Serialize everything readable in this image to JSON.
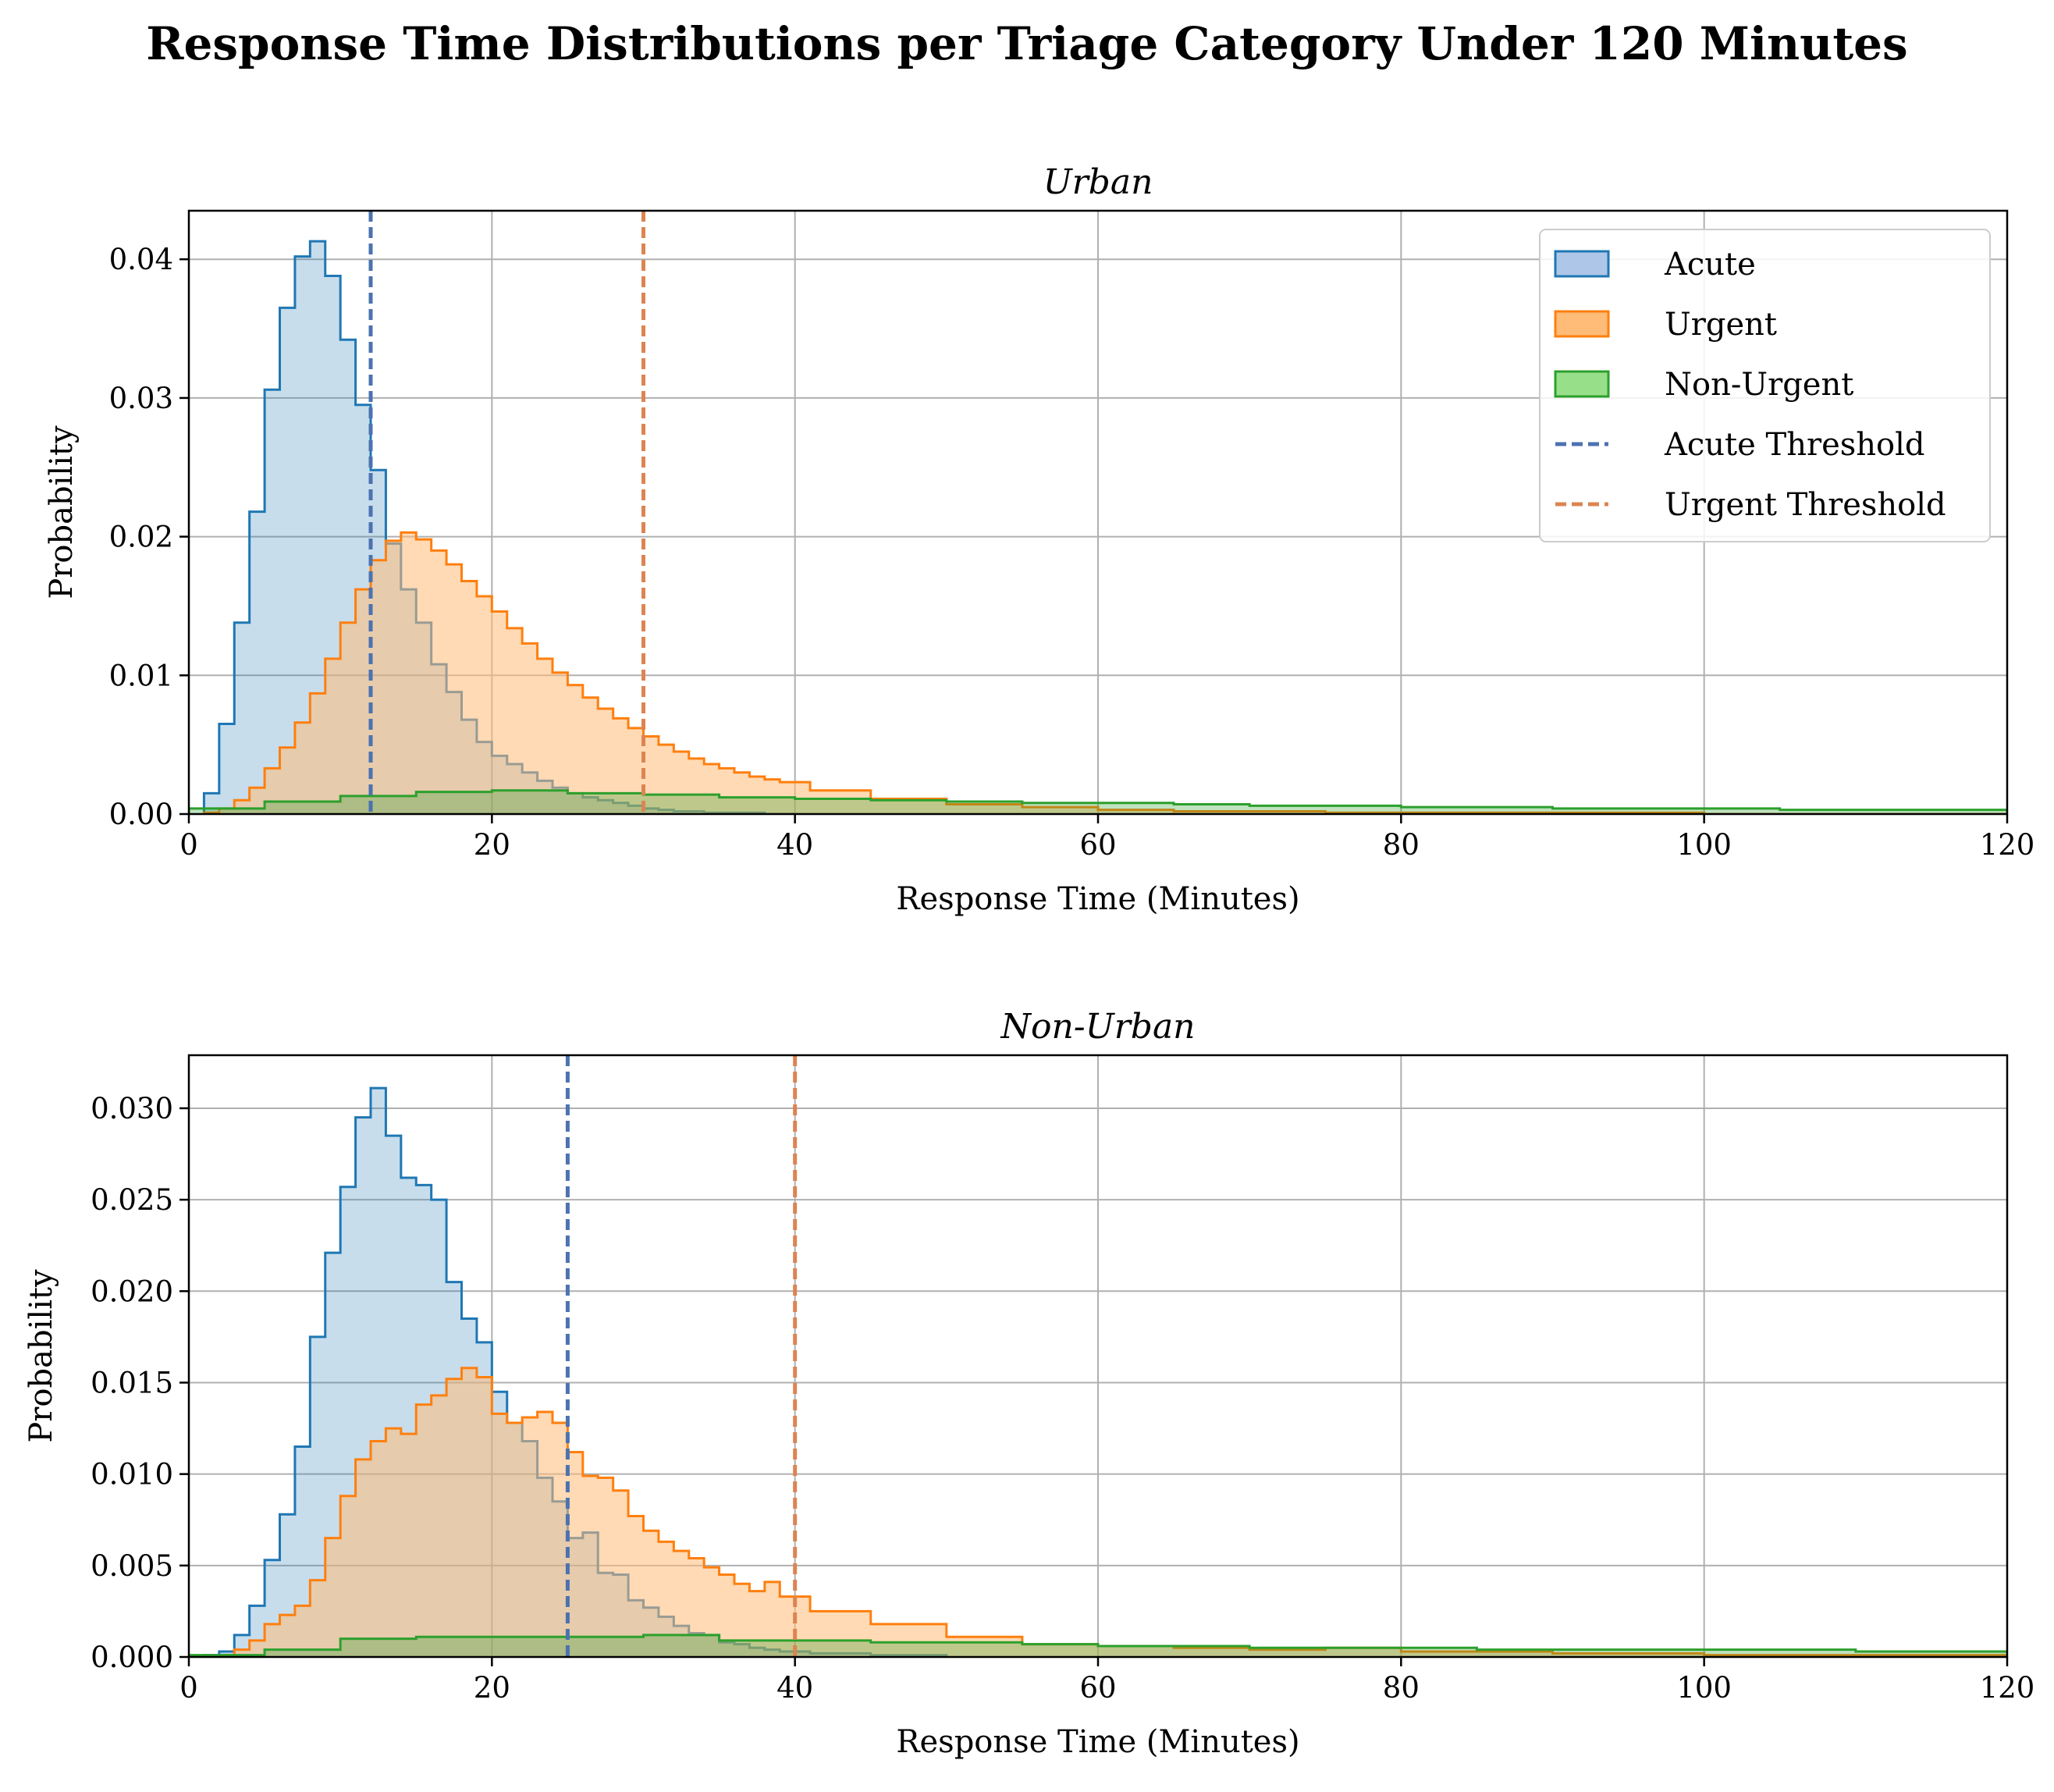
{
  "figure_title": "Response Time Distributions per Triage Category Under 120 Minutes",
  "colors": {
    "acute_line": "#1f77b4",
    "acute_fill": "#aec7e8",
    "urgent_line": "#ff7f0e",
    "urgent_fill": "#ffbb78",
    "nonurgent_line": "#2ca02c",
    "nonurgent_fill": "#98df8a",
    "acute_threshold": "#4c72b0",
    "urgent_threshold": "#dd8452",
    "grid": "#b0b0b0"
  },
  "legend": [
    "Acute",
    "Urgent",
    "Non-Urgent",
    "Acute Threshold",
    "Urgent Threshold"
  ],
  "chart_data": [
    {
      "type": "area",
      "title": "Urban",
      "xlabel": "Response Time (Minutes)",
      "ylabel": "Probability",
      "xlim": [
        0,
        120
      ],
      "ylim": [
        0,
        0.0435
      ],
      "xticks": [
        0,
        20,
        40,
        60,
        80,
        100,
        120
      ],
      "xtick_labels": [
        "0",
        "20",
        "40",
        "60",
        "80",
        "100",
        "120"
      ],
      "yticks": [
        0,
        0.01,
        0.02,
        0.03,
        0.04
      ],
      "ytick_labels": [
        "0.00",
        "0.01",
        "0.02",
        "0.03",
        "0.04"
      ],
      "grid": true,
      "legend_position": "top-right",
      "thresholds": [
        {
          "name": "Acute Threshold",
          "x": 12
        },
        {
          "name": "Urgent Threshold",
          "x": 30
        }
      ],
      "series": [
        {
          "name": "Acute",
          "x": [
            1.5,
            2.5,
            3.5,
            4.5,
            5.5,
            6.5,
            7.5,
            8.5,
            9.5,
            10.5,
            11.5,
            12.5,
            13.5,
            14.5,
            15.5,
            16.5,
            17.5,
            18.5,
            19.5,
            20.5,
            21.5,
            22.5,
            23.5,
            24.5,
            25.5,
            26.5,
            27.5,
            28.5,
            29.5,
            30.5,
            31.5,
            32.5,
            33.5,
            34.5,
            35.5,
            36.5,
            37.5,
            38.5,
            39.5
          ],
          "values": [
            0.0015,
            0.0065,
            0.0138,
            0.0218,
            0.0306,
            0.0365,
            0.0402,
            0.0413,
            0.0388,
            0.0342,
            0.0295,
            0.0248,
            0.0195,
            0.0162,
            0.0138,
            0.0108,
            0.0088,
            0.0068,
            0.0052,
            0.0042,
            0.0036,
            0.003,
            0.0024,
            0.0019,
            0.0015,
            0.0012,
            0.001,
            0.0008,
            0.0006,
            0.0004,
            0.0003,
            0.0002,
            0.0002,
            0.0001,
            0.0001,
            0.0001,
            0.0001,
            0.0,
            0.0
          ]
        },
        {
          "name": "Urgent",
          "x": [
            1.5,
            2.5,
            3.5,
            4.5,
            5.5,
            6.5,
            7.5,
            8.5,
            9.5,
            10.5,
            11.5,
            12.5,
            13.5,
            14.5,
            15.5,
            16.5,
            17.5,
            18.5,
            19.5,
            20.5,
            21.5,
            22.5,
            23.5,
            24.5,
            25.5,
            26.5,
            27.5,
            28.5,
            29.5,
            30.5,
            31.5,
            32.5,
            33.5,
            34.5,
            35.5,
            36.5,
            37.5,
            38.5,
            39.5,
            42.5,
            47.5,
            52.5,
            57.5,
            62.5,
            67.5,
            72.5,
            77.5,
            82.5,
            87.5,
            92.5,
            97.5,
            102.5,
            107.5,
            112.5,
            117.5
          ],
          "values": [
            0.0001,
            0.0004,
            0.001,
            0.0019,
            0.0033,
            0.0048,
            0.0066,
            0.0087,
            0.0112,
            0.0138,
            0.0162,
            0.0183,
            0.0197,
            0.0203,
            0.0198,
            0.019,
            0.018,
            0.0168,
            0.0157,
            0.0146,
            0.0134,
            0.0123,
            0.0112,
            0.0102,
            0.0093,
            0.0084,
            0.0076,
            0.0069,
            0.0062,
            0.0056,
            0.005,
            0.0045,
            0.004,
            0.0036,
            0.0033,
            0.003,
            0.0027,
            0.0025,
            0.0023,
            0.0017,
            0.0011,
            0.0007,
            0.0005,
            0.0003,
            0.0002,
            0.0002,
            0.0001,
            0.0001,
            0.0001,
            0.0001,
            0.0001,
            0.0,
            0.0,
            0.0,
            0.0
          ]
        },
        {
          "name": "Non-Urgent",
          "x": [
            2.5,
            7.5,
            12.5,
            17.5,
            22.5,
            27.5,
            32.5,
            37.5,
            42.5,
            47.5,
            52.5,
            57.5,
            62.5,
            67.5,
            72.5,
            77.5,
            82.5,
            87.5,
            92.5,
            97.5,
            102.5,
            107.5,
            112.5,
            117.5
          ],
          "values": [
            0.0004,
            0.0009,
            0.0013,
            0.0016,
            0.0017,
            0.0015,
            0.0014,
            0.0012,
            0.0011,
            0.001,
            0.0009,
            0.0008,
            0.0008,
            0.0007,
            0.0006,
            0.0006,
            0.0005,
            0.0005,
            0.0004,
            0.0004,
            0.0004,
            0.0003,
            0.0003,
            0.0003
          ]
        }
      ]
    },
    {
      "type": "area",
      "title": "Non-Urban",
      "xlabel": "Response Time (Minutes)",
      "ylabel": "Probability",
      "xlim": [
        0,
        120
      ],
      "ylim": [
        0,
        0.0329
      ],
      "xticks": [
        0,
        20,
        40,
        60,
        80,
        100,
        120
      ],
      "xtick_labels": [
        "0",
        "20",
        "40",
        "60",
        "80",
        "100",
        "120"
      ],
      "yticks": [
        0,
        0.005,
        0.01,
        0.015,
        0.02,
        0.025,
        0.03
      ],
      "ytick_labels": [
        "0.000",
        "0.005",
        "0.010",
        "0.015",
        "0.020",
        "0.025",
        "0.030"
      ],
      "grid": true,
      "thresholds": [
        {
          "name": "Acute Threshold",
          "x": 25
        },
        {
          "name": "Urgent Threshold",
          "x": 40
        }
      ],
      "series": [
        {
          "name": "Acute",
          "x": [
            1.5,
            2.5,
            3.5,
            4.5,
            5.5,
            6.5,
            7.5,
            8.5,
            9.5,
            10.5,
            11.5,
            12.5,
            13.5,
            14.5,
            15.5,
            16.5,
            17.5,
            18.5,
            19.5,
            20.5,
            21.5,
            22.5,
            23.5,
            24.5,
            25.5,
            26.5,
            27.5,
            28.5,
            29.5,
            30.5,
            31.5,
            32.5,
            33.5,
            34.5,
            35.5,
            36.5,
            37.5,
            38.5,
            39.5,
            42.5,
            47.5
          ],
          "values": [
            0.0001,
            0.0003,
            0.0012,
            0.0028,
            0.0053,
            0.0078,
            0.0115,
            0.0175,
            0.0221,
            0.0257,
            0.0295,
            0.0311,
            0.0285,
            0.0262,
            0.0258,
            0.025,
            0.0205,
            0.0185,
            0.0172,
            0.0145,
            0.0128,
            0.0118,
            0.0098,
            0.0085,
            0.0065,
            0.0068,
            0.0046,
            0.0045,
            0.0031,
            0.0027,
            0.0022,
            0.0017,
            0.0013,
            0.0012,
            0.0008,
            0.0007,
            0.0005,
            0.0004,
            0.0003,
            0.0002,
            0.0001
          ]
        },
        {
          "name": "Urgent",
          "x": [
            1.5,
            2.5,
            3.5,
            4.5,
            5.5,
            6.5,
            7.5,
            8.5,
            9.5,
            10.5,
            11.5,
            12.5,
            13.5,
            14.5,
            15.5,
            16.5,
            17.5,
            18.5,
            19.5,
            20.5,
            21.5,
            22.5,
            23.5,
            24.5,
            25.5,
            26.5,
            27.5,
            28.5,
            29.5,
            30.5,
            31.5,
            32.5,
            33.5,
            34.5,
            35.5,
            36.5,
            37.5,
            38.5,
            39.5,
            42.5,
            47.5,
            52.5,
            57.5,
            62.5,
            67.5,
            72.5,
            77.5,
            82.5,
            87.5,
            92.5,
            97.5,
            102.5,
            107.5,
            112.5,
            117.5
          ],
          "values": [
            0.0,
            0.0001,
            0.0004,
            0.0009,
            0.0018,
            0.0023,
            0.0028,
            0.0042,
            0.0065,
            0.0088,
            0.0108,
            0.0118,
            0.0125,
            0.0122,
            0.0138,
            0.0143,
            0.0152,
            0.0158,
            0.0153,
            0.0133,
            0.0128,
            0.0131,
            0.0134,
            0.0128,
            0.0112,
            0.0099,
            0.0098,
            0.0091,
            0.0077,
            0.0069,
            0.0063,
            0.0058,
            0.0054,
            0.0049,
            0.0045,
            0.004,
            0.0036,
            0.0041,
            0.0033,
            0.0025,
            0.0018,
            0.0011,
            0.0007,
            0.0006,
            0.0005,
            0.0004,
            0.0005,
            0.0003,
            0.0003,
            0.0002,
            0.0002,
            0.0001,
            0.0001,
            0.0001,
            0.0001
          ]
        },
        {
          "name": "Non-Urgent",
          "x": [
            2.5,
            7.5,
            12.5,
            17.5,
            22.5,
            27.5,
            32.5,
            37.5,
            42.5,
            47.5,
            52.5,
            57.5,
            62.5,
            67.5,
            72.5,
            77.5,
            82.5,
            87.5,
            92.5,
            97.5,
            102.5,
            107.5,
            112.5,
            117.5
          ],
          "values": [
            0.0001,
            0.0004,
            0.001,
            0.0011,
            0.0011,
            0.0011,
            0.0012,
            0.0009,
            0.0009,
            0.0008,
            0.0008,
            0.0007,
            0.0006,
            0.0006,
            0.0005,
            0.0005,
            0.0005,
            0.0004,
            0.0004,
            0.0004,
            0.0004,
            0.0004,
            0.0003,
            0.0003
          ]
        }
      ]
    }
  ]
}
